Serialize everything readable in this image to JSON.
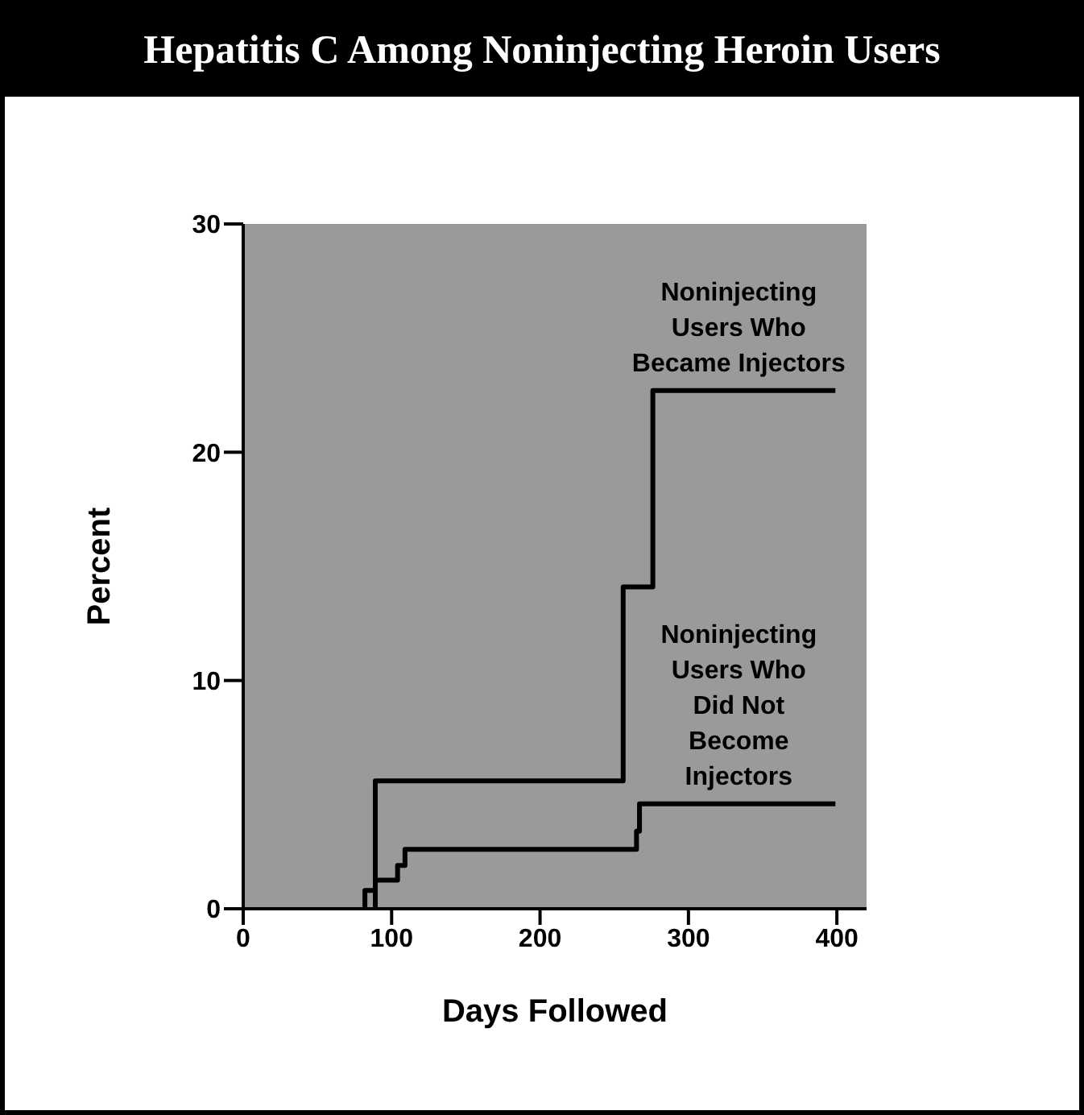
{
  "chart_data": {
    "type": "step",
    "title": "Hepatitis C Among Noninjecting Heroin Users",
    "xlabel": "Days Followed",
    "ylabel": "Percent",
    "xlim": [
      0,
      420
    ],
    "xticks": [
      0,
      100,
      200,
      300,
      400
    ],
    "ylim": [
      0,
      30
    ],
    "yticks": [
      0,
      10,
      20,
      30
    ],
    "marker": "none",
    "line_style": "solid",
    "series": [
      {
        "name": "Noninjecting Users Who Became Injectors",
        "color": "#000000",
        "x": [
          89,
          89,
          256,
          276,
          399
        ],
        "values": [
          0,
          5.6,
          14.1,
          22.7,
          22.7
        ]
      },
      {
        "name": "Noninjecting Users Who Did Not Become Injectors",
        "color": "#000000",
        "x": [
          82,
          82,
          89,
          104,
          109,
          265,
          267,
          399
        ],
        "values": [
          0,
          0.8,
          1.25,
          1.9,
          2.6,
          3.4,
          4.6,
          4.6
        ]
      }
    ]
  }
}
